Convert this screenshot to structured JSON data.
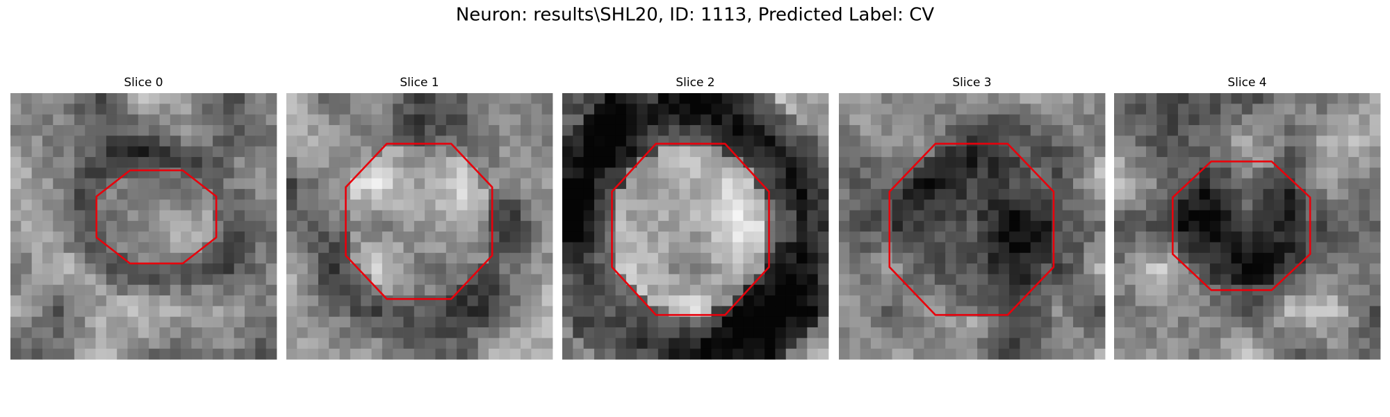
{
  "figure": {
    "title": "Neuron: results\\SHL20, ID: 1113, Predicted Label: CV",
    "panels": [
      {
        "title": "Slice 0"
      },
      {
        "title": "Slice 1"
      },
      {
        "title": "Slice 2"
      },
      {
        "title": "Slice 3"
      },
      {
        "title": "Slice 4"
      }
    ]
  }
}
